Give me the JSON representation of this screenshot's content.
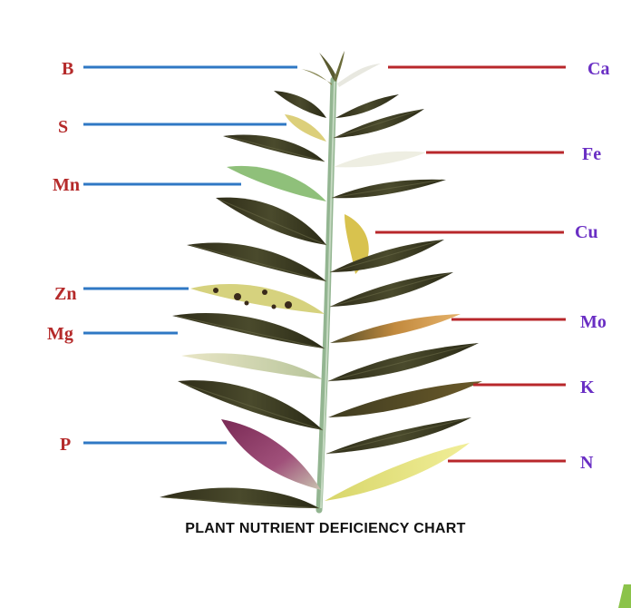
{
  "title": "PLANT NUTRIENT DEFICIENCY CHART",
  "colors": {
    "left_line": "#2f78c4",
    "right_line": "#b8272b",
    "left_label": "#b52a2a",
    "right_label": "#6a2fc4",
    "stem": "#8fb08a",
    "healthy_leaf": "#3b3a20",
    "accent_corner": "#8bc34a"
  },
  "left_labels": [
    {
      "id": "B",
      "text": "B",
      "leaf_condition": "dead-tip"
    },
    {
      "id": "S",
      "text": "S",
      "leaf_condition": "pale-yellow"
    },
    {
      "id": "Mn",
      "text": "Mn",
      "leaf_condition": "interveinal-light-green"
    },
    {
      "id": "Zn",
      "text": "Zn",
      "leaf_condition": "yellow-with-dark-spots"
    },
    {
      "id": "Mg",
      "text": "Mg",
      "leaf_condition": "interveinal-chlorosis"
    },
    {
      "id": "P",
      "text": "P",
      "leaf_condition": "purple"
    }
  ],
  "right_labels": [
    {
      "id": "Ca",
      "text": "Ca",
      "leaf_condition": "white-tip"
    },
    {
      "id": "Fe",
      "text": "Fe",
      "leaf_condition": "white-chlorotic"
    },
    {
      "id": "Cu",
      "text": "Cu",
      "leaf_condition": "yellow-curled"
    },
    {
      "id": "Mo",
      "text": "Mo",
      "leaf_condition": "mottled-orange"
    },
    {
      "id": "K",
      "text": "K",
      "leaf_condition": "scorched-margins"
    },
    {
      "id": "N",
      "text": "N",
      "leaf_condition": "uniform-yellow"
    }
  ],
  "icons": {
    "corner": "green-corner-mark"
  }
}
